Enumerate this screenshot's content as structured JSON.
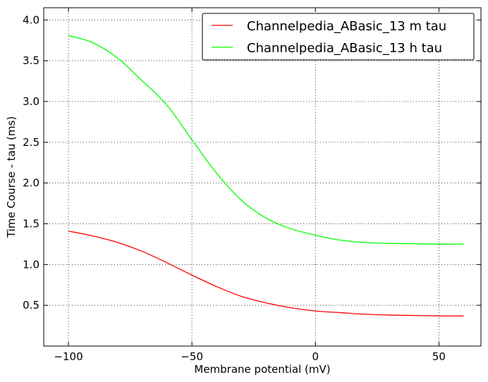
{
  "chart_data": {
    "type": "line",
    "title": "",
    "xlabel": "Membrane potential (mV)",
    "ylabel": "Time Course - tau (ms)",
    "xlim": [
      -110,
      67
    ],
    "ylim": [
      0,
      4.15
    ],
    "xticks": [
      -100,
      -50,
      0,
      50
    ],
    "xtick_labels": [
      "−100",
      "−50",
      "0",
      "50"
    ],
    "yticks": [
      0.5,
      1.0,
      1.5,
      2.0,
      2.5,
      3.0,
      3.5,
      4.0
    ],
    "ytick_labels": [
      "0.5",
      "1.0",
      "1.5",
      "2.0",
      "2.5",
      "3.0",
      "3.5",
      "4.0"
    ],
    "grid": true,
    "legend_position": "top-right",
    "x": [
      -100,
      -90,
      -80,
      -70,
      -60,
      -50,
      -40,
      -30,
      -20,
      -10,
      0,
      10,
      20,
      30,
      40,
      50,
      60
    ],
    "series": [
      {
        "name": "Channelpedia_ABasic_13 m tau",
        "color": "#ff0000",
        "values": [
          1.41,
          1.35,
          1.27,
          1.16,
          1.02,
          0.87,
          0.73,
          0.61,
          0.53,
          0.47,
          0.43,
          0.41,
          0.39,
          0.38,
          0.375,
          0.37,
          0.37
        ]
      },
      {
        "name": "Channelpedia_ABasic_13 h tau",
        "color": "#00ff00",
        "values": [
          3.81,
          3.72,
          3.53,
          3.25,
          2.95,
          2.53,
          2.12,
          1.79,
          1.57,
          1.44,
          1.36,
          1.3,
          1.27,
          1.26,
          1.255,
          1.25,
          1.25
        ]
      }
    ]
  }
}
